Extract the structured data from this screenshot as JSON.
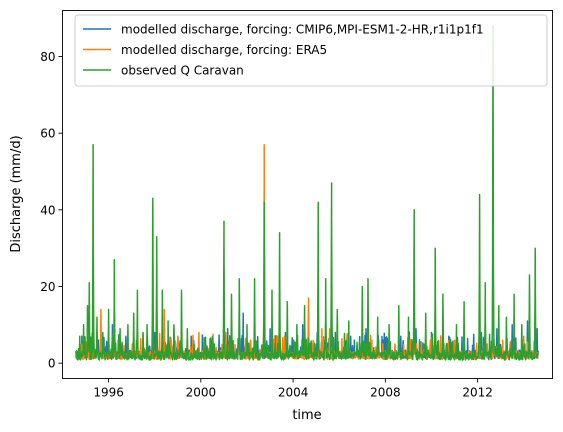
{
  "chart_data": {
    "type": "line",
    "xlabel": "time",
    "ylabel": "Discharge (mm/d)",
    "xlim": [
      "1994-01-01",
      "2015-04-01"
    ],
    "ylim": [
      -4,
      92
    ],
    "x_ticks": [
      "1996",
      "2000",
      "2004",
      "2008",
      "2012"
    ],
    "y_ticks": [
      0,
      20,
      40,
      60,
      80
    ],
    "x_tick_dates": [
      "1996-01-01",
      "2000-01-01",
      "2004-01-01",
      "2008-01-01",
      "2012-01-01"
    ],
    "grid": false,
    "legend_position": "upper-right",
    "series": [
      {
        "name": "modelled discharge, forcing: CMIP6,MPI-ESM1-2-HR,r1i1p1f1",
        "color": "#1f77b4",
        "baseline": 1.2,
        "peaks": [
          [
            "1995-02-01",
            9
          ],
          [
            "1995-07-01",
            8
          ],
          [
            "1996-03-01",
            10
          ],
          [
            "1996-10-01",
            7
          ],
          [
            "1997-04-01",
            9
          ],
          [
            "1998-01-01",
            8
          ],
          [
            "1998-11-01",
            9
          ],
          [
            "1999-08-01",
            7
          ],
          [
            "2000-06-01",
            6
          ],
          [
            "2001-03-01",
            9
          ],
          [
            "2001-11-01",
            13
          ],
          [
            "2002-05-01",
            10
          ],
          [
            "2003-01-01",
            9
          ],
          [
            "2003-09-01",
            8
          ],
          [
            "2004-06-01",
            10
          ],
          [
            "2005-02-01",
            9
          ],
          [
            "2005-11-01",
            8
          ],
          [
            "2006-07-01",
            7
          ],
          [
            "2007-03-01",
            9
          ],
          [
            "2007-12-01",
            6
          ],
          [
            "2008-09-01",
            7
          ],
          [
            "2009-05-01",
            9
          ],
          [
            "2010-01-01",
            8
          ],
          [
            "2010-10-01",
            7
          ],
          [
            "2011-06-01",
            9
          ],
          [
            "2012-03-01",
            8
          ],
          [
            "2012-11-01",
            9
          ],
          [
            "2013-07-01",
            10
          ],
          [
            "2014-03-01",
            11
          ],
          [
            "2014-08-01",
            9
          ]
        ]
      },
      {
        "name": "modelled discharge, forcing: ERA5",
        "color": "#ff7f0e",
        "baseline": 1.0,
        "peaks": [
          [
            "1994-08-01",
            2
          ],
          [
            "1995-09-01",
            14
          ],
          [
            "1996-06-01",
            6
          ],
          [
            "1997-02-01",
            8
          ],
          [
            "1998-06-01",
            14
          ],
          [
            "1999-01-01",
            7
          ],
          [
            "1999-12-01",
            8
          ],
          [
            "2000-09-01",
            4
          ],
          [
            "2001-02-01",
            8
          ],
          [
            "2002-03-01",
            6
          ],
          [
            "2002-10-01",
            57
          ],
          [
            "2003-05-01",
            7
          ],
          [
            "2004-09-01",
            17
          ],
          [
            "2005-04-01",
            9
          ],
          [
            "2005-08-01",
            9
          ],
          [
            "2006-05-01",
            6
          ],
          [
            "2007-06-01",
            6
          ],
          [
            "2008-06-01",
            5
          ],
          [
            "2009-01-01",
            4
          ],
          [
            "2009-10-01",
            5
          ],
          [
            "2011-01-01",
            6
          ],
          [
            "2012-06-01",
            5
          ],
          [
            "2013-02-01",
            6
          ],
          [
            "2014-01-01",
            7
          ]
        ]
      },
      {
        "name": "observed Q Caravan",
        "color": "#2ca02c",
        "baseline": 0.8,
        "peaks": [
          [
            "1994-10-01",
            7
          ],
          [
            "1994-12-01",
            10
          ],
          [
            "1995-02-01",
            15
          ],
          [
            "1995-03-01",
            21
          ],
          [
            "1995-05-01",
            57
          ],
          [
            "1995-07-01",
            12
          ],
          [
            "1995-10-01",
            8
          ],
          [
            "1996-01-01",
            14
          ],
          [
            "1996-04-01",
            27
          ],
          [
            "1996-07-01",
            9
          ],
          [
            "1996-11-01",
            10
          ],
          [
            "1997-02-01",
            13
          ],
          [
            "1997-04-01",
            19
          ],
          [
            "1997-07-01",
            8
          ],
          [
            "1997-09-01",
            10
          ],
          [
            "1997-12-01",
            43
          ],
          [
            "1998-02-01",
            33
          ],
          [
            "1998-05-01",
            19
          ],
          [
            "1998-08-01",
            11
          ],
          [
            "1998-11-01",
            10
          ],
          [
            "1999-03-01",
            19
          ],
          [
            "1999-06-01",
            9
          ],
          [
            "2000-03-01",
            6
          ],
          [
            "2000-08-01",
            5
          ],
          [
            "2001-01-01",
            37
          ],
          [
            "2001-05-01",
            18
          ],
          [
            "2001-09-01",
            22
          ],
          [
            "2002-01-01",
            10
          ],
          [
            "2002-05-01",
            22
          ],
          [
            "2002-10-01",
            42
          ],
          [
            "2003-02-01",
            19
          ],
          [
            "2003-06-01",
            34
          ],
          [
            "2003-10-01",
            16
          ],
          [
            "2004-03-01",
            10
          ],
          [
            "2004-07-01",
            15
          ],
          [
            "2005-02-01",
            42
          ],
          [
            "2005-06-01",
            22
          ],
          [
            "2005-09-01",
            47
          ],
          [
            "2005-12-01",
            14
          ],
          [
            "2006-06-01",
            11
          ],
          [
            "2007-01-01",
            20
          ],
          [
            "2007-04-01",
            22
          ],
          [
            "2007-09-01",
            12
          ],
          [
            "2008-03-01",
            10
          ],
          [
            "2008-08-01",
            15
          ],
          [
            "2009-01-01",
            12
          ],
          [
            "2009-04-01",
            40
          ],
          [
            "2009-10-01",
            13
          ],
          [
            "2010-03-01",
            30
          ],
          [
            "2010-07-01",
            18
          ],
          [
            "2011-02-01",
            10
          ],
          [
            "2011-06-01",
            16
          ],
          [
            "2012-02-01",
            44
          ],
          [
            "2012-05-01",
            21
          ],
          [
            "2012-09-01",
            88
          ],
          [
            "2012-12-01",
            15
          ],
          [
            "2013-04-01",
            12
          ],
          [
            "2013-08-01",
            18
          ],
          [
            "2013-12-01",
            10
          ],
          [
            "2014-04-01",
            23
          ],
          [
            "2014-07-01",
            30
          ]
        ]
      }
    ]
  }
}
